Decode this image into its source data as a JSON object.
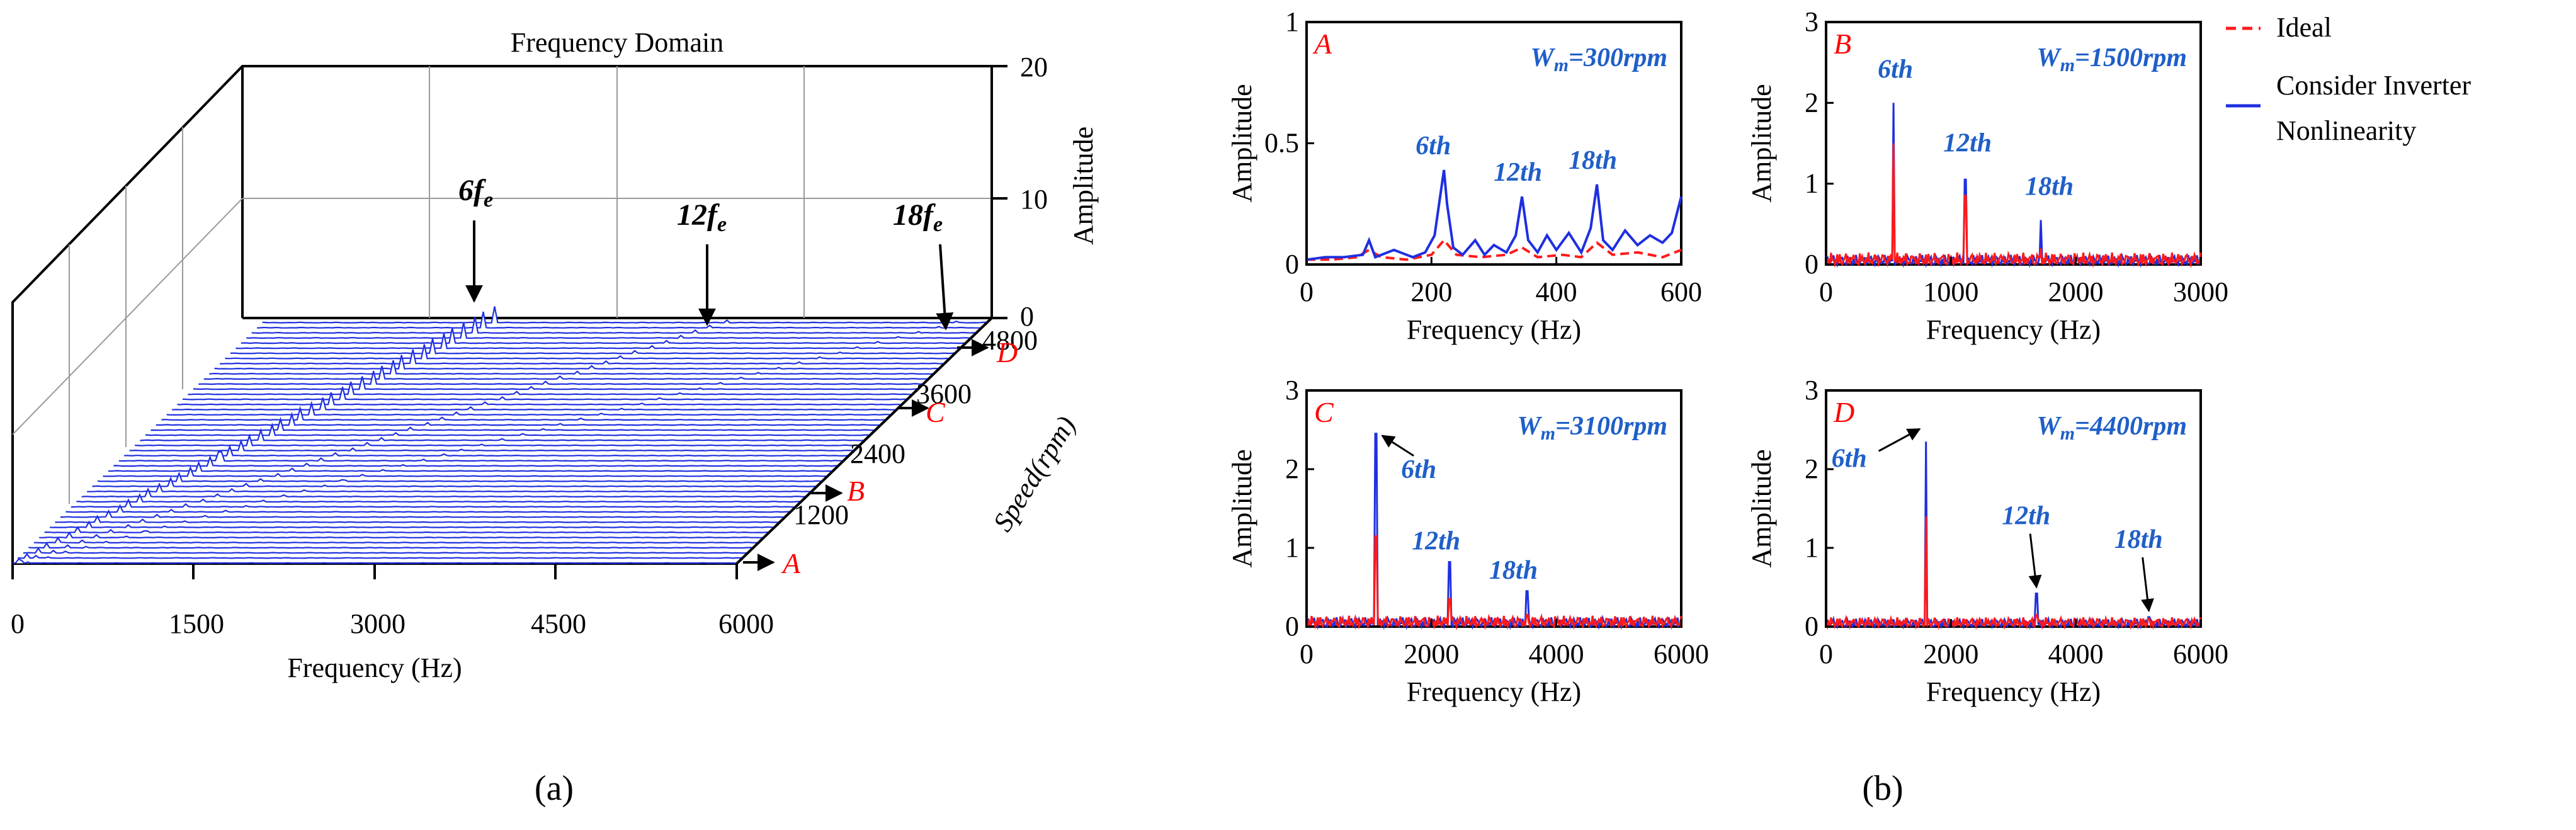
{
  "colors": {
    "ideal": "#ff1a1a",
    "inverter": "#1f2fe0",
    "harmonic_label": "#1f5fc8",
    "panel_letter": "#ff0000"
  },
  "legend": {
    "ideal": "Ideal",
    "inverter_line1": "Consider Inverter",
    "inverter_line2": "Nonlinearity"
  },
  "captions": {
    "a": "(a)",
    "b": "(b)"
  },
  "chart_data": [
    {
      "id": "waterfall",
      "type": "line",
      "title": "Frequency Domain",
      "xlabel": "Frequency (Hz)",
      "ylabel": "Speed(rpm)",
      "zlabel": "Amplitude",
      "xlim": [
        0,
        6000
      ],
      "ylim": [
        0,
        4800
      ],
      "zlim": [
        0,
        20
      ],
      "x_ticks": [
        "0",
        "1500",
        "3000",
        "4500",
        "6000"
      ],
      "y_ticks": [
        "1200",
        "2400",
        "3600",
        "4800"
      ],
      "z_ticks": [
        "0",
        "10",
        "20"
      ],
      "speed_markers": [
        {
          "label": "A",
          "speed": 300
        },
        {
          "label": "B",
          "speed": 1500
        },
        {
          "label": "C",
          "speed": 3100
        },
        {
          "label": "D",
          "speed": 4400
        }
      ],
      "harmonic_annotations": [
        {
          "base": "6f",
          "sub": "e",
          "frequency": 2400
        },
        {
          "base": "12f",
          "sub": "e",
          "frequency": 4800
        },
        {
          "base": "18f",
          "sub": "e",
          "frequency": 7200
        }
      ],
      "series": [
        {
          "name": "Speed traces",
          "speed_range": [
            0,
            4800
          ],
          "num_traces": 48,
          "peaks_at": [
            "6f_e",
            "12f_e"
          ],
          "max_amplitude_6f_e": 2.5
        }
      ]
    },
    {
      "id": "panel-A",
      "type": "line",
      "panel_label": "A",
      "speed_label": {
        "w": "W",
        "sub": "m",
        "value": "=300rpm"
      },
      "xlabel": "Frequency (Hz)",
      "ylabel": "Amplitude",
      "xlim": [
        0,
        600
      ],
      "ylim": [
        0,
        1
      ],
      "x_ticks": [
        "0",
        "200",
        "400",
        "600"
      ],
      "y_ticks": [
        "0",
        "0.5",
        "1"
      ],
      "harmonics": [
        {
          "label": "6th",
          "frequency": 220,
          "amplitude": 0.39
        },
        {
          "label": "12th",
          "frequency": 345,
          "amplitude": 0.28
        },
        {
          "label": "18th",
          "frequency": 465,
          "amplitude": 0.33
        }
      ],
      "series": [
        {
          "name": "Consider Inverter Nonlinearity",
          "x": [
            0,
            30,
            60,
            90,
            100,
            110,
            140,
            170,
            190,
            205,
            215,
            220,
            225,
            235,
            250,
            270,
            285,
            300,
            320,
            335,
            345,
            355,
            370,
            385,
            400,
            420,
            440,
            455,
            465,
            475,
            490,
            510,
            530,
            550,
            570,
            585,
            600
          ],
          "y": [
            0.02,
            0.03,
            0.03,
            0.04,
            0.1,
            0.03,
            0.06,
            0.03,
            0.05,
            0.12,
            0.3,
            0.39,
            0.25,
            0.07,
            0.04,
            0.1,
            0.04,
            0.08,
            0.05,
            0.12,
            0.28,
            0.1,
            0.05,
            0.12,
            0.06,
            0.13,
            0.05,
            0.15,
            0.33,
            0.1,
            0.06,
            0.14,
            0.08,
            0.12,
            0.09,
            0.13,
            0.28
          ]
        },
        {
          "name": "Ideal",
          "x": [
            0,
            40,
            80,
            100,
            120,
            160,
            200,
            220,
            240,
            280,
            320,
            345,
            370,
            410,
            440,
            465,
            490,
            530,
            570,
            600
          ],
          "y": [
            0.02,
            0.02,
            0.03,
            0.06,
            0.03,
            0.02,
            0.04,
            0.1,
            0.04,
            0.03,
            0.04,
            0.07,
            0.03,
            0.04,
            0.03,
            0.09,
            0.04,
            0.05,
            0.03,
            0.06
          ]
        }
      ]
    },
    {
      "id": "panel-B",
      "type": "line",
      "panel_label": "B",
      "speed_label": {
        "w": "W",
        "sub": "m",
        "value": "=1500rpm"
      },
      "xlabel": "Frequency (Hz)",
      "ylabel": "Amplitude",
      "xlim": [
        0,
        3000
      ],
      "ylim": [
        0,
        3
      ],
      "x_ticks": [
        "0",
        "1000",
        "2000",
        "3000"
      ],
      "y_ticks": [
        "0",
        "1",
        "2",
        "3"
      ],
      "harmonics": [
        {
          "label": "6th",
          "frequency": 540,
          "amplitude": 2.0
        },
        {
          "label": "12th",
          "frequency": 1115,
          "amplitude": 1.05
        },
        {
          "label": "18th",
          "frequency": 1720,
          "amplitude": 0.55
        }
      ],
      "series": [
        {
          "name": "Consider Inverter Nonlinearity",
          "noise_level": 0.12,
          "peaks": [
            [
              540,
              2.0
            ],
            [
              1115,
              1.05
            ],
            [
              1720,
              0.55
            ]
          ]
        },
        {
          "name": "Ideal",
          "noise_level": 0.15,
          "peaks": [
            [
              540,
              1.5
            ],
            [
              1115,
              0.85
            ],
            [
              1720,
              0.2
            ]
          ]
        }
      ]
    },
    {
      "id": "panel-C",
      "type": "line",
      "panel_label": "C",
      "speed_label": {
        "w": "W",
        "sub": "m",
        "value": "=3100rpm"
      },
      "xlabel": "Frequency (Hz)",
      "ylabel": "Amplitude",
      "xlim": [
        0,
        6000
      ],
      "ylim": [
        0,
        3
      ],
      "x_ticks": [
        "0",
        "2000",
        "4000",
        "6000"
      ],
      "y_ticks": [
        "0",
        "1",
        "2",
        "3"
      ],
      "harmonics": [
        {
          "label": "6th",
          "frequency": 1110,
          "amplitude": 2.45
        },
        {
          "label": "12th",
          "frequency": 2290,
          "amplitude": 0.82
        },
        {
          "label": "18th",
          "frequency": 3530,
          "amplitude": 0.45
        }
      ],
      "series": [
        {
          "name": "Consider Inverter Nonlinearity",
          "noise_level": 0.12,
          "peaks": [
            [
              1110,
              2.45
            ],
            [
              2290,
              0.82
            ],
            [
              3530,
              0.45
            ]
          ]
        },
        {
          "name": "Ideal",
          "noise_level": 0.14,
          "peaks": [
            [
              1110,
              1.15
            ],
            [
              2290,
              0.35
            ],
            [
              3530,
              0.15
            ]
          ]
        }
      ]
    },
    {
      "id": "panel-D",
      "type": "line",
      "panel_label": "D",
      "speed_label": {
        "w": "W",
        "sub": "m",
        "value": "=4400rpm"
      },
      "xlabel": "Frequency (Hz)",
      "ylabel": "Amplitude",
      "xlim": [
        0,
        6000
      ],
      "ylim": [
        0,
        3
      ],
      "x_ticks": [
        "0",
        "2000",
        "4000",
        "6000"
      ],
      "y_ticks": [
        "0",
        "1",
        "2",
        "3"
      ],
      "harmonics": [
        {
          "label": "6th",
          "frequency": 1600,
          "amplitude": 2.35
        },
        {
          "label": "12th",
          "frequency": 3370,
          "amplitude": 0.42
        },
        {
          "label": "18th",
          "frequency": 5170,
          "amplitude": 0.12
        }
      ],
      "series": [
        {
          "name": "Consider Inverter Nonlinearity",
          "noise_level": 0.1,
          "peaks": [
            [
              1600,
              2.35
            ],
            [
              3370,
              0.42
            ],
            [
              5170,
              0.12
            ]
          ]
        },
        {
          "name": "Ideal",
          "noise_level": 0.12,
          "peaks": [
            [
              1600,
              1.4
            ],
            [
              3370,
              0.15
            ],
            [
              5170,
              0.1
            ]
          ]
        }
      ]
    }
  ]
}
